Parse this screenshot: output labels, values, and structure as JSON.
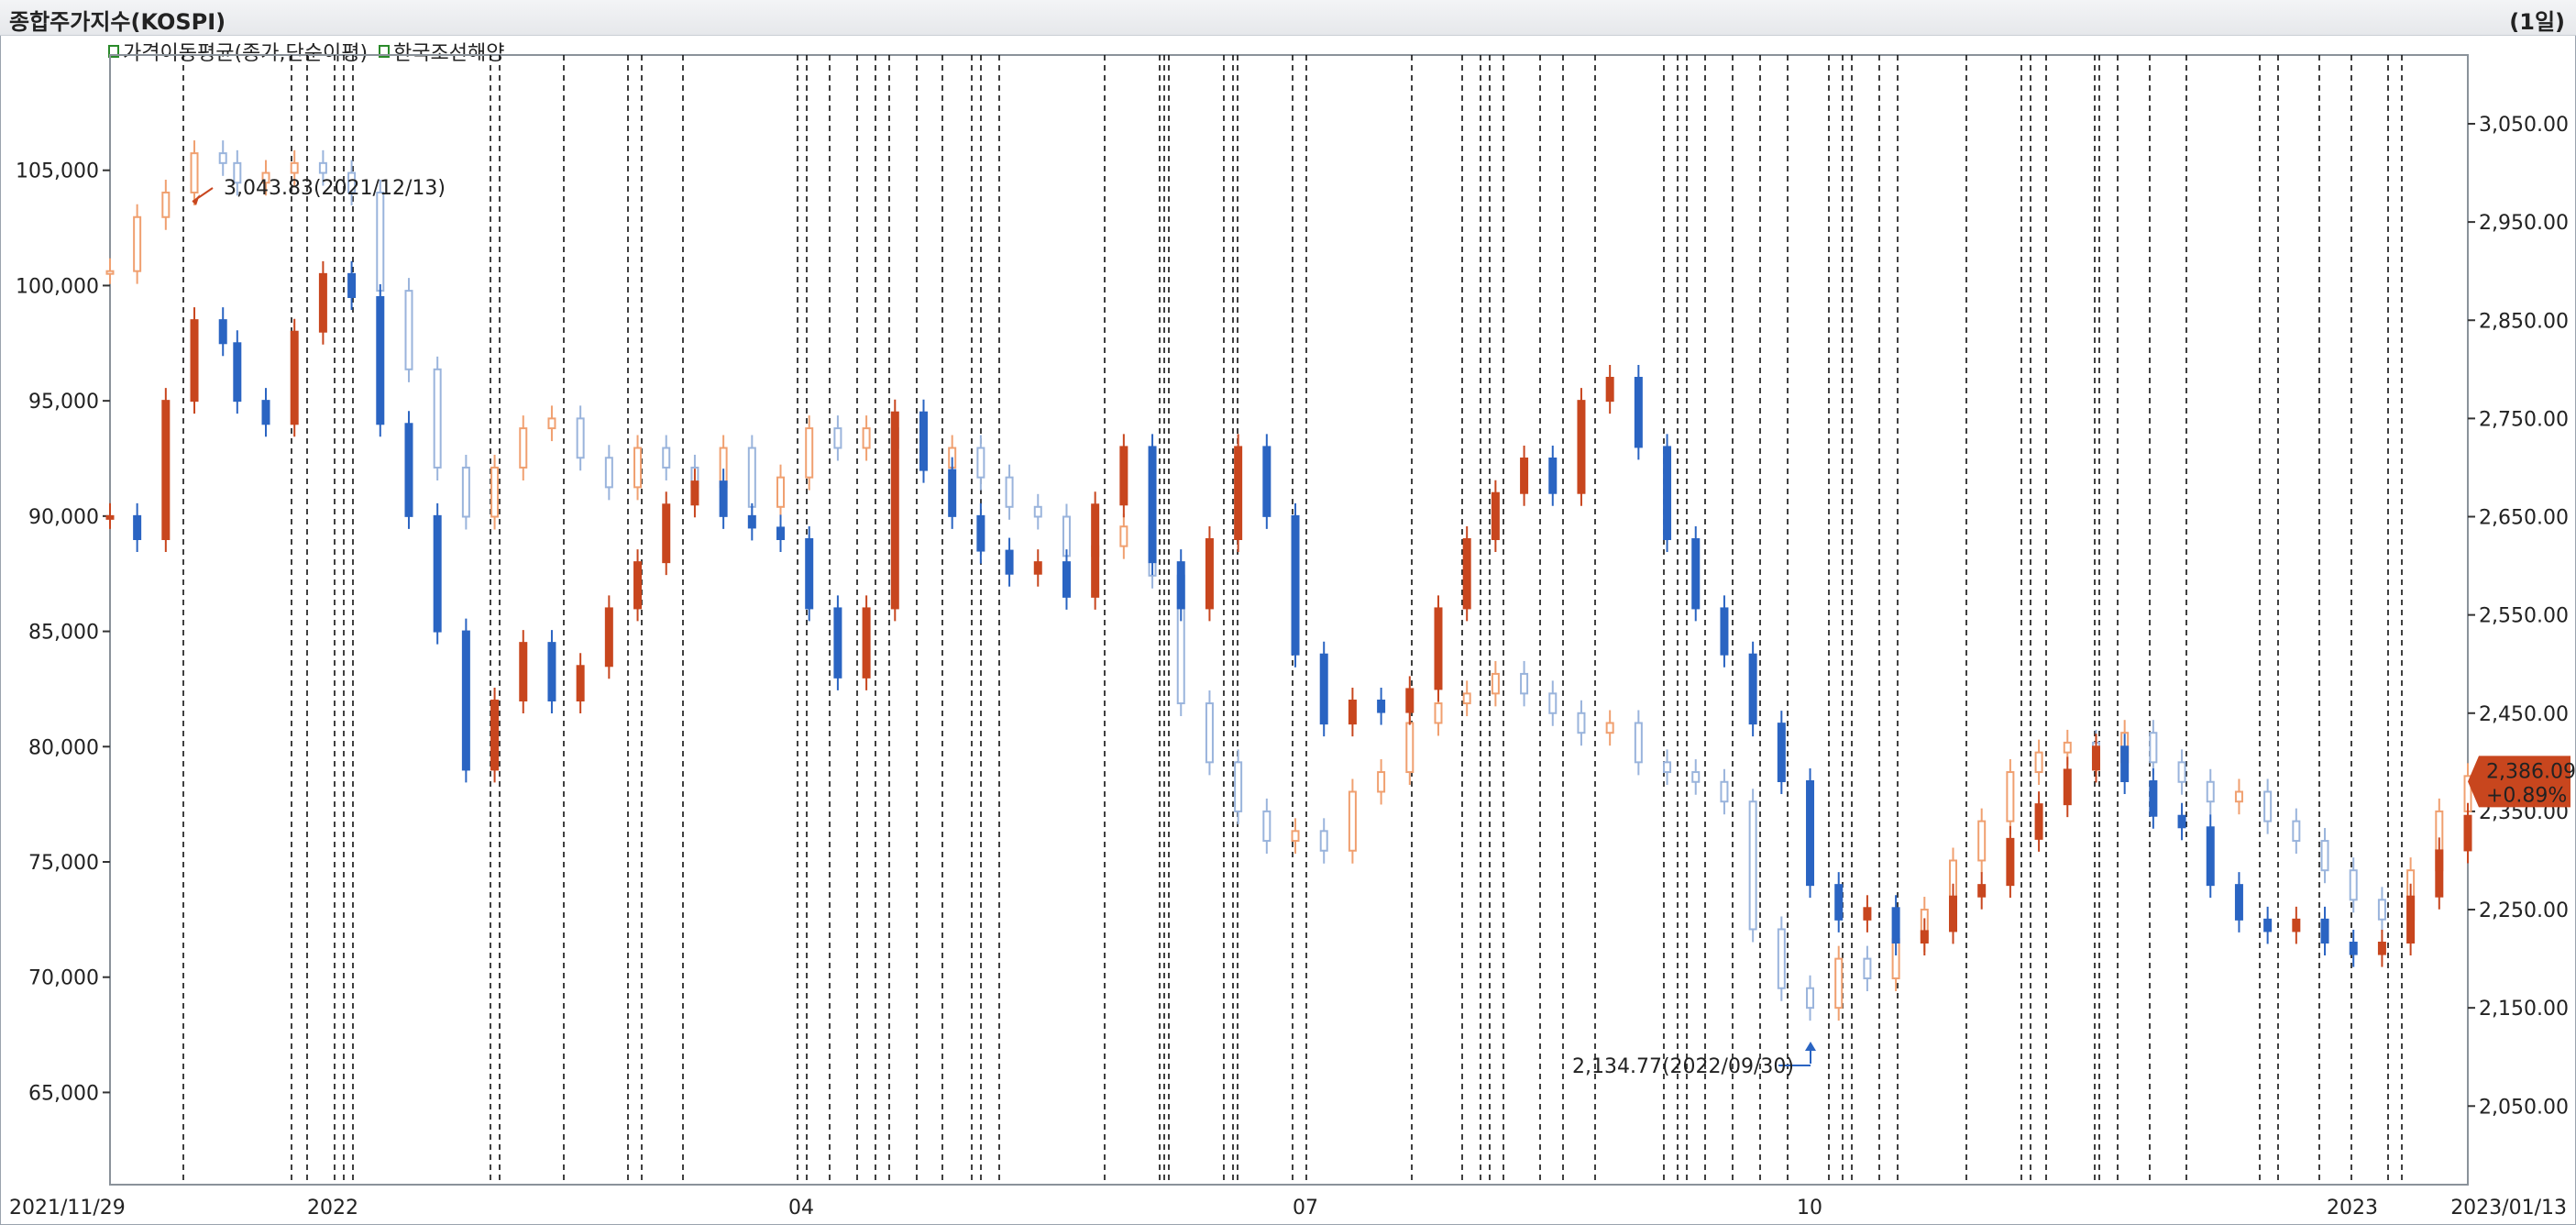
{
  "window": {
    "title": "종합주가지수(KOSPI)",
    "period": "(1일)"
  },
  "legend": {
    "items": [
      {
        "label": "가격이동평균(종가,단순이평)",
        "color": "#2a8a2a"
      },
      {
        "label": "한국조선해양",
        "color": "#2a8a2a"
      }
    ]
  },
  "colors": {
    "up": "#c8461e",
    "down": "#2a64c2",
    "kospi_up": "#f0a070",
    "kospi_down": "#9ab4dc",
    "grid_line": "#111111",
    "badge": "#c8461e"
  },
  "annotations": {
    "high_label": "3,043.83(2021/12/13)",
    "low_label": "2,134.77(2022/09/30)",
    "last_value": "2,386.09",
    "last_change": "+0.89%"
  },
  "chart_data": {
    "type": "candlestick",
    "left_axis": {
      "ticks": [
        "105,000",
        "100,000",
        "95,000",
        "90,000",
        "85,000",
        "80,000",
        "75,000",
        "70,000",
        "65,000"
      ],
      "values": [
        105000,
        100000,
        95000,
        90000,
        85000,
        80000,
        75000,
        70000,
        65000
      ],
      "range": [
        61000,
        110000
      ]
    },
    "right_axis": {
      "ticks": [
        "3,050.00",
        "2,950.00",
        "2,850.00",
        "2,750.00",
        "2,650.00",
        "2,550.00",
        "2,450.00",
        "2,350.00",
        "2,250.00",
        "2,150.00",
        "2,050.00"
      ],
      "values": [
        3050,
        2950,
        2850,
        2750,
        2650,
        2550,
        2450,
        2350,
        2250,
        2150,
        2050
      ],
      "range": [
        1970,
        3120
      ]
    },
    "x_axis": {
      "labels": [
        "2021/11/29",
        "2022",
        "04",
        "07",
        "10",
        "2023",
        "2023/01/13"
      ]
    },
    "series": [
      {
        "name": "한국조선해양",
        "axis": "left",
        "points": [
          [
            2021.911,
            90000
          ],
          [
            2021.93,
            89000
          ],
          [
            2021.95,
            95000
          ],
          [
            2021.97,
            98500
          ],
          [
            2021.99,
            97500
          ],
          [
            2022.0,
            95000
          ],
          [
            2022.02,
            94000
          ],
          [
            2022.04,
            98000
          ],
          [
            2022.06,
            100500
          ],
          [
            2022.08,
            99500
          ],
          [
            2022.1,
            94000
          ],
          [
            2022.12,
            90000
          ],
          [
            2022.14,
            85000
          ],
          [
            2022.16,
            79000
          ],
          [
            2022.18,
            82000
          ],
          [
            2022.2,
            84500
          ],
          [
            2022.22,
            82000
          ],
          [
            2022.24,
            83500
          ],
          [
            2022.26,
            86000
          ],
          [
            2022.28,
            88000
          ],
          [
            2022.3,
            90500
          ],
          [
            2022.32,
            91500
          ],
          [
            2022.34,
            90000
          ],
          [
            2022.36,
            89500
          ],
          [
            2022.38,
            89000
          ],
          [
            2022.4,
            86000
          ],
          [
            2022.42,
            83000
          ],
          [
            2022.44,
            86000
          ],
          [
            2022.46,
            94500
          ],
          [
            2022.48,
            92000
          ],
          [
            2022.5,
            90000
          ],
          [
            2022.52,
            88500
          ],
          [
            2022.54,
            87500
          ],
          [
            2022.56,
            88000
          ],
          [
            2022.58,
            86500
          ],
          [
            2022.6,
            90500
          ],
          [
            2022.62,
            93000
          ],
          [
            2022.64,
            88000
          ],
          [
            2022.66,
            86000
          ],
          [
            2022.68,
            89000
          ],
          [
            2022.7,
            93000
          ],
          [
            2022.72,
            90000
          ],
          [
            2022.74,
            84000
          ],
          [
            2022.76,
            81000
          ],
          [
            2022.78,
            82000
          ],
          [
            2022.8,
            81500
          ],
          [
            2022.82,
            82500
          ],
          [
            2022.84,
            86000
          ],
          [
            2022.86,
            89000
          ],
          [
            2022.88,
            91000
          ],
          [
            2022.9,
            92500
          ],
          [
            2022.92,
            91000
          ],
          [
            2022.94,
            95000
          ],
          [
            2022.96,
            96000
          ],
          [
            2022.98,
            93000
          ],
          [
            2023.0,
            89000
          ],
          [
            2023.02,
            86000
          ],
          [
            2023.04,
            84000
          ],
          [
            2023.06,
            81000
          ],
          [
            2023.08,
            78500
          ],
          [
            2023.1,
            74000
          ],
          [
            2023.12,
            72500
          ],
          [
            2023.14,
            73000
          ],
          [
            2023.16,
            71500
          ],
          [
            2023.18,
            72000
          ],
          [
            2023.2,
            73500
          ],
          [
            2023.22,
            74000
          ],
          [
            2023.24,
            76000
          ],
          [
            2023.26,
            77500
          ],
          [
            2023.28,
            79000
          ],
          [
            2023.3,
            80000
          ],
          [
            2023.32,
            78500
          ],
          [
            2023.34,
            77000
          ],
          [
            2023.36,
            76500
          ],
          [
            2023.38,
            74000
          ],
          [
            2023.4,
            72500
          ],
          [
            2023.42,
            72000
          ],
          [
            2023.44,
            72500
          ],
          [
            2023.46,
            71500
          ],
          [
            2023.48,
            71000
          ],
          [
            2023.5,
            71500
          ],
          [
            2023.52,
            73500
          ],
          [
            2023.54,
            75500
          ],
          [
            2023.56,
            77000
          ]
        ]
      },
      {
        "name": "종합주가지수(KOSPI)",
        "axis": "right",
        "points": [
          [
            2021.911,
            2900
          ],
          [
            2021.93,
            2955
          ],
          [
            2021.95,
            2980
          ],
          [
            2021.97,
            3020
          ],
          [
            2021.99,
            3010
          ],
          [
            2022.0,
            2990
          ],
          [
            2022.02,
            3000
          ],
          [
            2022.04,
            3010
          ],
          [
            2022.06,
            3000
          ],
          [
            2022.08,
            2980
          ],
          [
            2022.1,
            2880
          ],
          [
            2022.12,
            2800
          ],
          [
            2022.14,
            2700
          ],
          [
            2022.16,
            2650
          ],
          [
            2022.18,
            2700
          ],
          [
            2022.2,
            2740
          ],
          [
            2022.22,
            2750
          ],
          [
            2022.24,
            2710
          ],
          [
            2022.26,
            2680
          ],
          [
            2022.28,
            2720
          ],
          [
            2022.3,
            2700
          ],
          [
            2022.32,
            2680
          ],
          [
            2022.34,
            2720
          ],
          [
            2022.36,
            2660
          ],
          [
            2022.38,
            2690
          ],
          [
            2022.4,
            2740
          ],
          [
            2022.42,
            2720
          ],
          [
            2022.44,
            2740
          ],
          [
            2022.46,
            2720
          ],
          [
            2022.48,
            2700
          ],
          [
            2022.5,
            2720
          ],
          [
            2022.52,
            2690
          ],
          [
            2022.54,
            2660
          ],
          [
            2022.56,
            2650
          ],
          [
            2022.58,
            2610
          ],
          [
            2022.6,
            2620
          ],
          [
            2022.62,
            2640
          ],
          [
            2022.64,
            2590
          ],
          [
            2022.66,
            2460
          ],
          [
            2022.68,
            2400
          ],
          [
            2022.7,
            2350
          ],
          [
            2022.72,
            2320
          ],
          [
            2022.74,
            2330
          ],
          [
            2022.76,
            2310
          ],
          [
            2022.78,
            2370
          ],
          [
            2022.8,
            2390
          ],
          [
            2022.82,
            2440
          ],
          [
            2022.84,
            2460
          ],
          [
            2022.86,
            2470
          ],
          [
            2022.88,
            2490
          ],
          [
            2022.9,
            2470
          ],
          [
            2022.92,
            2450
          ],
          [
            2022.94,
            2430
          ],
          [
            2022.96,
            2440
          ],
          [
            2022.98,
            2400
          ],
          [
            2023.0,
            2390
          ],
          [
            2023.02,
            2380
          ],
          [
            2023.04,
            2360
          ],
          [
            2023.06,
            2230
          ],
          [
            2023.08,
            2170
          ],
          [
            2023.1,
            2150
          ],
          [
            2023.12,
            2200
          ],
          [
            2023.14,
            2180
          ],
          [
            2023.16,
            2220
          ],
          [
            2023.18,
            2250
          ],
          [
            2023.2,
            2300
          ],
          [
            2023.22,
            2340
          ],
          [
            2023.24,
            2390
          ],
          [
            2023.26,
            2410
          ],
          [
            2023.28,
            2420
          ],
          [
            2023.3,
            2400
          ],
          [
            2023.32,
            2430
          ],
          [
            2023.34,
            2400
          ],
          [
            2023.36,
            2380
          ],
          [
            2023.38,
            2360
          ],
          [
            2023.4,
            2370
          ],
          [
            2023.42,
            2340
          ],
          [
            2023.44,
            2320
          ],
          [
            2023.46,
            2290
          ],
          [
            2023.48,
            2260
          ],
          [
            2023.5,
            2240
          ],
          [
            2023.52,
            2290
          ],
          [
            2023.54,
            2350
          ],
          [
            2023.56,
            2386
          ]
        ]
      }
    ],
    "high": {
      "value": 3043.83,
      "date": "2021/12/13"
    },
    "low": {
      "value": 2134.77,
      "date": "2022/09/30"
    }
  }
}
